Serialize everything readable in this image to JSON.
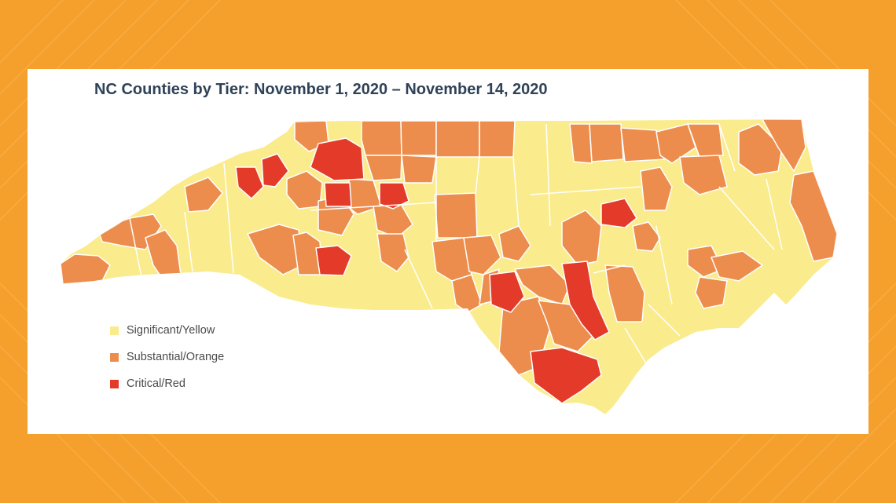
{
  "title": "NC Counties by Tier: November 1, 2020 – November 14, 2020",
  "colors": {
    "frame": "#f5a02c",
    "significant": "#faeb8c",
    "substantial": "#ec8d4d",
    "critical": "#e33a2a",
    "border": "#ffffff"
  },
  "legend": [
    {
      "label": "Significant/Yellow",
      "color": "#faeb8c"
    },
    {
      "label": "Substantial/Orange",
      "color": "#ec8d4d"
    },
    {
      "label": "Critical/Red",
      "color": "#e33a2a"
    }
  ]
}
